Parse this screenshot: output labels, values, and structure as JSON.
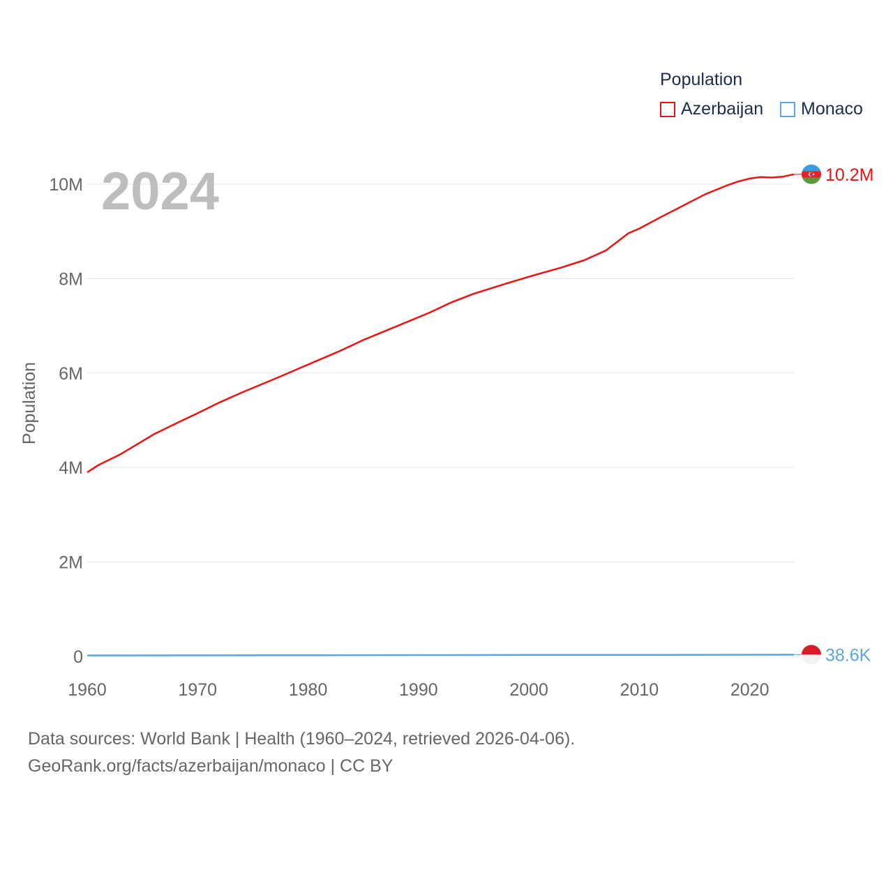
{
  "legend": {
    "title": "Population",
    "items": [
      {
        "label": "Azerbaijan",
        "color": "#ee1111"
      },
      {
        "label": "Monaco",
        "color": "#5aa6e8"
      }
    ]
  },
  "footer": {
    "sources": "Data sources: World Bank | Health (1960–2024, retrieved 2026-04-06).",
    "credit": "GeoRank.org/facts/azerbaijan/monaco | CC BY"
  },
  "chart_data": {
    "type": "line",
    "title": "Population",
    "year_label": "2024",
    "xlabel": "",
    "ylabel": "Population",
    "xlim": [
      1960,
      2024
    ],
    "ylim": [
      0,
      10500000
    ],
    "x_ticks": [
      1960,
      1970,
      1980,
      1990,
      2000,
      2010,
      2020
    ],
    "x_tick_labels": [
      "1960",
      "1970",
      "1980",
      "1990",
      "2000",
      "2010",
      "2020"
    ],
    "y_ticks": [
      0,
      2000000,
      4000000,
      6000000,
      8000000,
      10000000
    ],
    "y_tick_labels": [
      "0",
      "2M",
      "4M",
      "6M",
      "8M",
      "10M"
    ],
    "grid": true,
    "series": [
      {
        "name": "Azerbaijan",
        "color": "#ee1111",
        "end_label": "10.2M",
        "flag": "azerbaijan-flag",
        "x": [
          1960,
          1961,
          1963,
          1964,
          1966,
          1968,
          1970,
          1972,
          1974,
          1977,
          1979,
          1981,
          1983,
          1985,
          1988,
          1991,
          1993,
          1995,
          1998,
          2000,
          2003,
          2005,
          2007,
          2009,
          2010,
          2012,
          2014,
          2016,
          2018,
          2019,
          2020,
          2021,
          2022,
          2023,
          2024
        ],
        "y": [
          3900000,
          4050000,
          4280000,
          4420000,
          4700000,
          4930000,
          5150000,
          5380000,
          5590000,
          5880000,
          6080000,
          6280000,
          6480000,
          6700000,
          6990000,
          7280000,
          7500000,
          7680000,
          7900000,
          8040000,
          8240000,
          8390000,
          8600000,
          8960000,
          9060000,
          9310000,
          9550000,
          9790000,
          9980000,
          10060000,
          10120000,
          10150000,
          10140000,
          10160000,
          10210000
        ]
      },
      {
        "name": "Monaco",
        "color": "#5aa6e8",
        "end_label": "38.6K",
        "flag": "monaco-flag",
        "x": [
          1960,
          1970,
          1980,
          1990,
          2000,
          2010,
          2020,
          2024
        ],
        "y": [
          22000,
          24000,
          27000,
          30000,
          32000,
          33000,
          37000,
          38600
        ]
      }
    ]
  }
}
